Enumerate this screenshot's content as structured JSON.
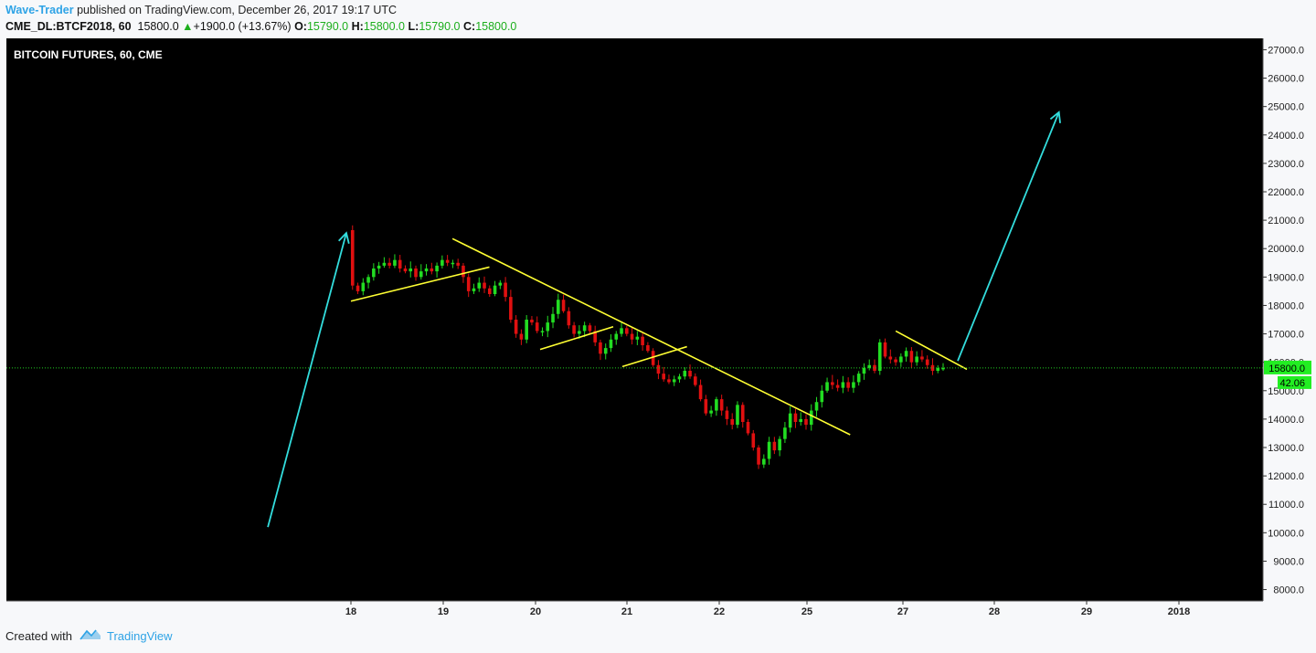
{
  "header": {
    "author": "Wave-Trader",
    "published_text": "published on TradingView.com, December 26, 2017 19:17 UTC",
    "symbol": "CME_DL:BTCF2018, 60",
    "last": "15800.0",
    "change": "+1900.0 (+13.67%)",
    "o_label": "O:",
    "o_value": "15790.0",
    "h_label": "H:",
    "h_value": "15800.0",
    "l_label": "L:",
    "l_value": "15790.0",
    "c_label": "C:",
    "c_value": "15800.0",
    "up_arrow": "▲"
  },
  "footer": {
    "created_with": "Created with",
    "brand": "TradingView"
  },
  "colors": {
    "background": "#000000",
    "bull": "#22dd22",
    "bear": "#e01010",
    "trendline": "#ffff33",
    "arrow": "#33dddd",
    "price_line": "#22cc22",
    "axis_bg": "#f7f8fa"
  },
  "chart_data": {
    "type": "candlestick",
    "title": "BITCOIN FUTURES, 60, CME",
    "ylim": [
      7600,
      27400
    ],
    "y_ticks": [
      "27000.0",
      "26000.0",
      "25000.0",
      "24000.0",
      "23000.0",
      "22000.0",
      "21000.0",
      "20000.0",
      "19000.0",
      "18000.0",
      "17000.0",
      "16000.0",
      "15000.0",
      "14000.0",
      "13000.0",
      "12000.0",
      "11000.0",
      "10000.0",
      "9000.0",
      "8000.0"
    ],
    "x_ticks": [
      "18",
      "19",
      "20",
      "21",
      "22",
      "25",
      "27",
      "28",
      "29",
      "2018"
    ],
    "current_price": 15800,
    "current_price_label": "15800.0",
    "volume_label": "42.06",
    "price_path": [
      [
        0,
        20650
      ],
      [
        1,
        18700
      ],
      [
        2,
        18500
      ],
      [
        3,
        18800
      ],
      [
        4,
        19000
      ],
      [
        5,
        19300
      ],
      [
        6,
        19400
      ],
      [
        7,
        19500
      ],
      [
        8,
        19400
      ],
      [
        9,
        19600
      ],
      [
        10,
        19300
      ],
      [
        11,
        19200
      ],
      [
        12,
        19300
      ],
      [
        13,
        19000
      ],
      [
        14,
        19200
      ],
      [
        15,
        19300
      ],
      [
        16,
        19200
      ],
      [
        17,
        19400
      ],
      [
        18,
        19600
      ],
      [
        19,
        19500
      ],
      [
        20,
        19500
      ],
      [
        21,
        19400
      ],
      [
        22,
        19000
      ],
      [
        23,
        18500
      ],
      [
        24,
        18600
      ],
      [
        25,
        18800
      ],
      [
        26,
        18600
      ],
      [
        27,
        18400
      ],
      [
        28,
        18700
      ],
      [
        29,
        18800
      ],
      [
        30,
        18300
      ],
      [
        31,
        17500
      ],
      [
        32,
        17000
      ],
      [
        33,
        16800
      ],
      [
        34,
        17500
      ],
      [
        35,
        17400
      ],
      [
        36,
        17100
      ],
      [
        37,
        17100
      ],
      [
        38,
        17400
      ],
      [
        39,
        17700
      ],
      [
        40,
        18200
      ],
      [
        41,
        17800
      ],
      [
        42,
        17300
      ],
      [
        43,
        17000
      ],
      [
        44,
        17100
      ],
      [
        45,
        17300
      ],
      [
        46,
        17100
      ],
      [
        47,
        16700
      ],
      [
        48,
        16300
      ],
      [
        49,
        16500
      ],
      [
        50,
        16800
      ],
      [
        51,
        17000
      ],
      [
        52,
        17200
      ],
      [
        53,
        17000
      ],
      [
        54,
        16800
      ],
      [
        55,
        16900
      ],
      [
        56,
        16600
      ],
      [
        57,
        16400
      ],
      [
        58,
        15900
      ],
      [
        59,
        15600
      ],
      [
        60,
        15400
      ],
      [
        61,
        15300
      ],
      [
        62,
        15400
      ],
      [
        63,
        15500
      ],
      [
        64,
        15700
      ],
      [
        65,
        15500
      ],
      [
        66,
        15200
      ],
      [
        67,
        14700
      ],
      [
        68,
        14200
      ],
      [
        69,
        14300
      ],
      [
        70,
        14700
      ],
      [
        71,
        14300
      ],
      [
        72,
        14000
      ],
      [
        73,
        13800
      ],
      [
        74,
        14500
      ],
      [
        75,
        13900
      ],
      [
        76,
        13500
      ],
      [
        77,
        13000
      ],
      [
        78,
        12400
      ],
      [
        79,
        12600
      ],
      [
        80,
        13200
      ],
      [
        81,
        12900
      ],
      [
        82,
        13300
      ],
      [
        83,
        13700
      ],
      [
        84,
        14200
      ],
      [
        85,
        13900
      ],
      [
        86,
        14000
      ],
      [
        87,
        13800
      ],
      [
        88,
        14300
      ],
      [
        89,
        14600
      ],
      [
        90,
        15000
      ],
      [
        91,
        15300
      ],
      [
        92,
        15200
      ],
      [
        93,
        15100
      ],
      [
        94,
        15300
      ],
      [
        95,
        15100
      ],
      [
        96,
        15300
      ],
      [
        97,
        15600
      ],
      [
        98,
        15800
      ],
      [
        99,
        15900
      ],
      [
        100,
        15700
      ],
      [
        101,
        16700
      ],
      [
        102,
        16200
      ],
      [
        103,
        16100
      ],
      [
        104,
        16000
      ],
      [
        105,
        16200
      ],
      [
        106,
        16400
      ],
      [
        107,
        16000
      ],
      [
        108,
        16200
      ],
      [
        109,
        16100
      ],
      [
        110,
        15900
      ],
      [
        111,
        15700
      ],
      [
        112,
        15800
      ],
      [
        113,
        15800
      ]
    ],
    "trendlines": [
      {
        "from": [
          "18",
          18150
        ],
        "to": [
          "19.5",
          19350
        ]
      },
      {
        "from": [
          "19.1",
          20350
        ],
        "to": [
          "25.9",
          13450
        ]
      },
      {
        "from": [
          "20.05",
          16450
        ],
        "to": [
          "20.85",
          17250
        ]
      },
      {
        "from": [
          "20.95",
          15850
        ],
        "to": [
          "21.65",
          16550
        ]
      },
      {
        "from": [
          "26.85",
          17100
        ],
        "to": [
          "27.7",
          15750
        ]
      }
    ],
    "arrows": [
      {
        "from": [
          "17.1",
          10200
        ],
        "to": [
          "17.95",
          20550
        ]
      },
      {
        "from": [
          "27.6",
          16050
        ],
        "to": [
          "28.7",
          24800
        ]
      }
    ]
  }
}
